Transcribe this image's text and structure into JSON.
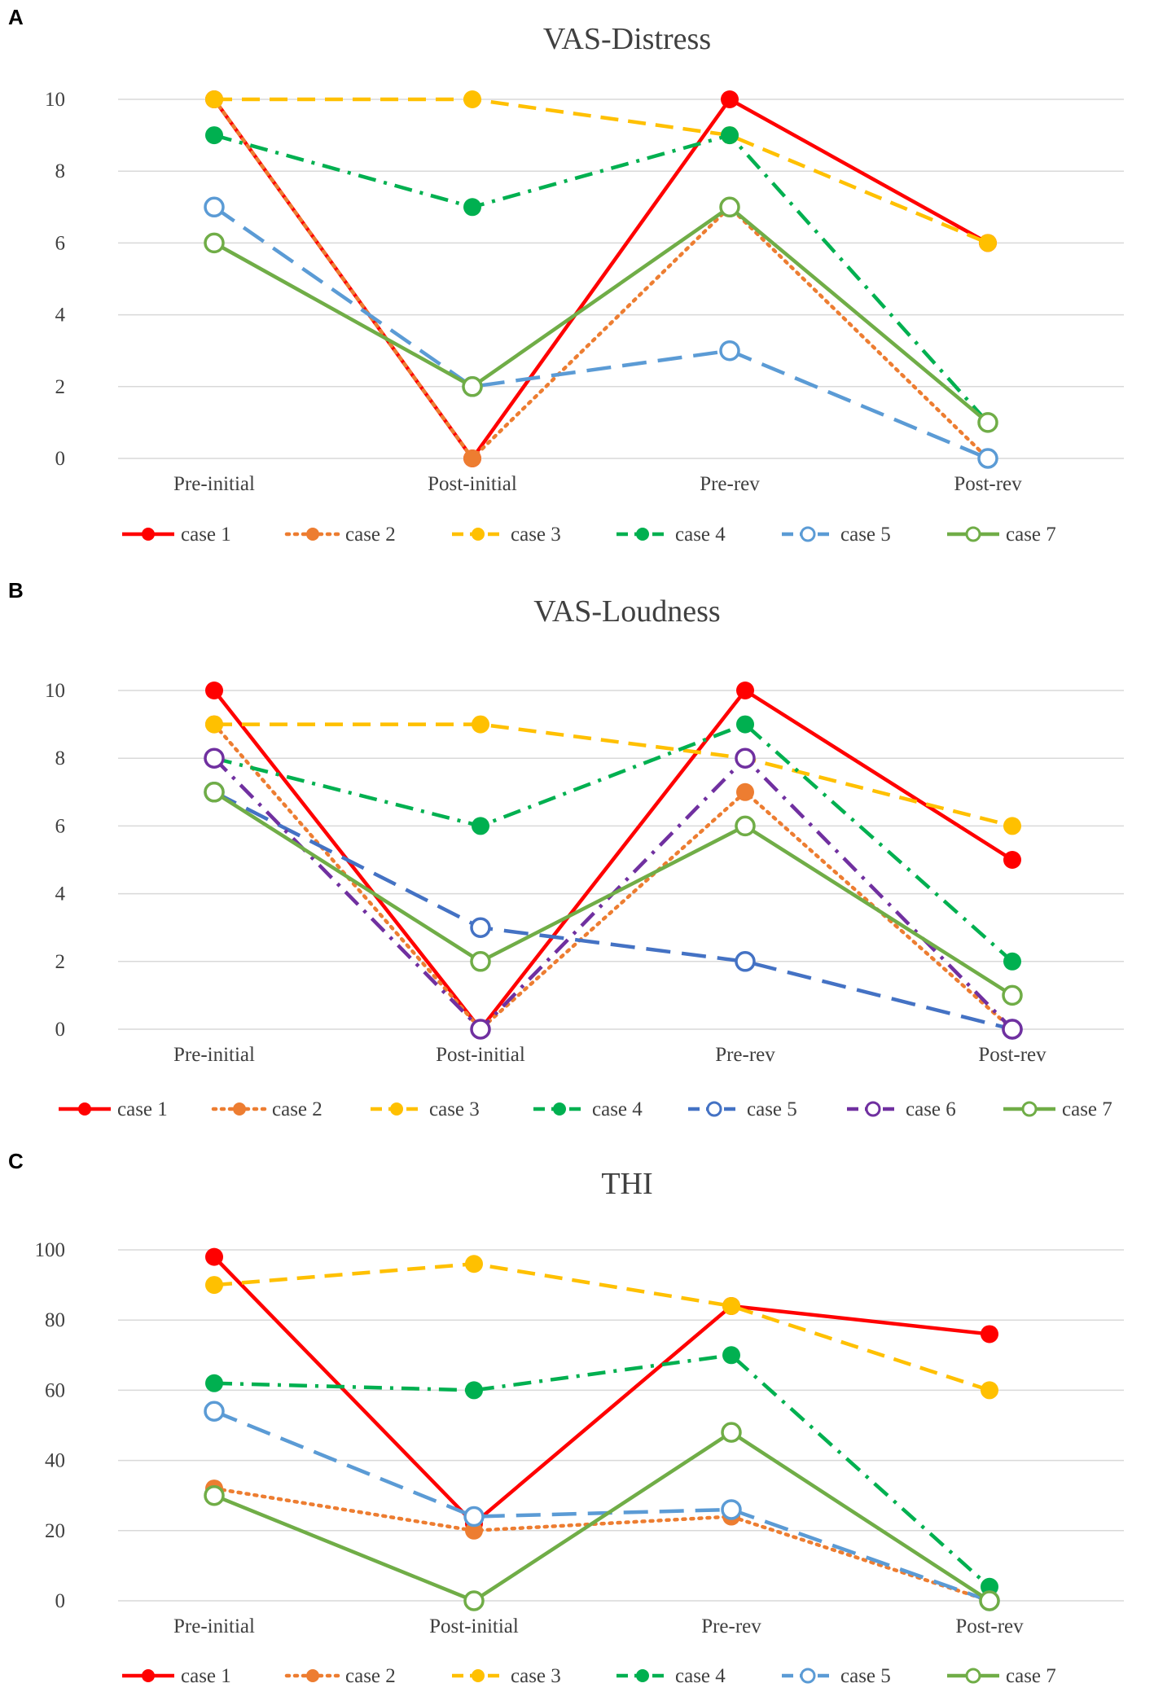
{
  "chart_data": [
    {
      "panel": "A",
      "type": "line",
      "title": "VAS-Distress",
      "categories": [
        "Pre-initial",
        "Post-initial",
        "Pre-rev",
        "Post-rev"
      ],
      "ylim": [
        0,
        10
      ],
      "yticks": [
        0,
        2,
        4,
        6,
        8,
        10
      ],
      "grid": true,
      "legend": "bottom",
      "series": [
        {
          "name": "case 1",
          "values": [
            10,
            0,
            10,
            6
          ],
          "color": "#ff0000",
          "dash": "solid",
          "marker": "filled"
        },
        {
          "name": "case 2",
          "values": [
            10,
            0,
            7,
            0
          ],
          "color": "#ed7d31",
          "dash": "dot",
          "marker": "filled"
        },
        {
          "name": "case 3",
          "values": [
            10,
            10,
            9,
            6
          ],
          "color": "#ffc000",
          "dash": "dash",
          "marker": "filled"
        },
        {
          "name": "case 4",
          "values": [
            9,
            7,
            9,
            1
          ],
          "color": "#00b050",
          "dash": "dashdot",
          "marker": "filled"
        },
        {
          "name": "case 5",
          "values": [
            7,
            2,
            3,
            0
          ],
          "color": "#5b9bd5",
          "dash": "longdash",
          "marker": "open"
        },
        {
          "name": "case 7",
          "values": [
            6,
            2,
            7,
            1
          ],
          "color": "#70ad47",
          "dash": "solid",
          "marker": "open"
        }
      ]
    },
    {
      "panel": "B",
      "type": "line",
      "title": "VAS-Loudness",
      "categories": [
        "Pre-initial",
        "Post-initial",
        "Pre-rev",
        "Post-rev"
      ],
      "ylim": [
        0,
        10
      ],
      "yticks": [
        0,
        2,
        4,
        6,
        8,
        10
      ],
      "grid": true,
      "legend": "bottom",
      "series": [
        {
          "name": "case 1",
          "values": [
            10,
            0,
            10,
            5
          ],
          "color": "#ff0000",
          "dash": "solid",
          "marker": "filled"
        },
        {
          "name": "case 2",
          "values": [
            9,
            0,
            7,
            0
          ],
          "color": "#ed7d31",
          "dash": "dot",
          "marker": "filled"
        },
        {
          "name": "case 3",
          "values": [
            9,
            9,
            8,
            6
          ],
          "color": "#ffc000",
          "dash": "dash",
          "marker": "filled"
        },
        {
          "name": "case 4",
          "values": [
            8,
            6,
            9,
            2
          ],
          "color": "#00b050",
          "dash": "dashdot",
          "marker": "filled"
        },
        {
          "name": "case 5",
          "values": [
            7,
            3,
            2,
            0
          ],
          "color": "#4472c4",
          "dash": "longdash",
          "marker": "open"
        },
        {
          "name": "case 6",
          "values": [
            8,
            0,
            8,
            0
          ],
          "color": "#7030a0",
          "dash": "dashdot",
          "marker": "open"
        },
        {
          "name": "case 7",
          "values": [
            7,
            2,
            6,
            1
          ],
          "color": "#70ad47",
          "dash": "solid",
          "marker": "open"
        }
      ]
    },
    {
      "panel": "C",
      "type": "line",
      "title": "THI",
      "categories": [
        "Pre-initial",
        "Post-initial",
        "Pre-rev",
        "Post-rev"
      ],
      "ylim": [
        0,
        100
      ],
      "yticks": [
        0,
        20,
        40,
        60,
        80,
        100
      ],
      "grid": true,
      "legend": "bottom",
      "series": [
        {
          "name": "case 1",
          "values": [
            98,
            22,
            84,
            76
          ],
          "color": "#ff0000",
          "dash": "solid",
          "marker": "filled"
        },
        {
          "name": "case 2",
          "values": [
            32,
            20,
            24,
            0
          ],
          "color": "#ed7d31",
          "dash": "dot",
          "marker": "filled"
        },
        {
          "name": "case 3",
          "values": [
            90,
            96,
            84,
            60
          ],
          "color": "#ffc000",
          "dash": "dash",
          "marker": "filled"
        },
        {
          "name": "case 4",
          "values": [
            62,
            60,
            70,
            4
          ],
          "color": "#00b050",
          "dash": "dashdot",
          "marker": "filled"
        },
        {
          "name": "case 5",
          "values": [
            54,
            24,
            26,
            0
          ],
          "color": "#5b9bd5",
          "dash": "longdash",
          "marker": "open"
        },
        {
          "name": "case 7",
          "values": [
            30,
            0,
            48,
            0
          ],
          "color": "#70ad47",
          "dash": "solid",
          "marker": "open"
        }
      ]
    }
  ]
}
